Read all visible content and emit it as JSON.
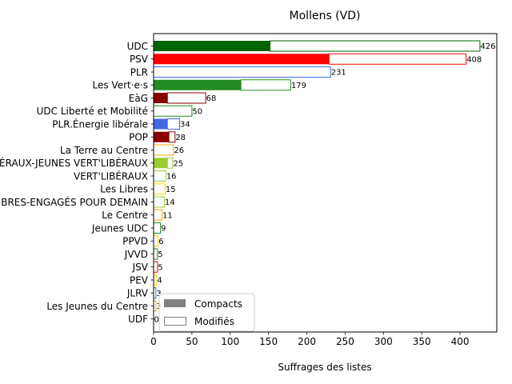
{
  "chart_data": {
    "type": "bar",
    "orientation": "horizontal",
    "title": "Mollens (VD)",
    "xlabel": "Suffrages des listes",
    "ylabel": "",
    "xlim": [
      0,
      448
    ],
    "xticks": [
      0,
      50,
      100,
      150,
      200,
      250,
      300,
      350,
      400
    ],
    "grid": false,
    "legend": {
      "placement": "lower-left",
      "entries": [
        {
          "label": "Compacts",
          "style": "filled",
          "color": "#808080"
        },
        {
          "label": "Modifiés",
          "style": "outline",
          "color": "#808080"
        }
      ]
    },
    "categories": [
      "UDC",
      "PSV",
      "PLR",
      "Les Vert·e·s",
      "EàG",
      "UDC Liberté et Mobilité",
      "PLR.Énergie libérale",
      "POP",
      "La Terre au Centre",
      "VERT'LIBÉRAUX-JEUNES VERT'LIBÉRAUX",
      "VERT'LIBÉRAUX",
      "Les Libres",
      "LIBRES-ENGAGÉS POUR DEMAIN",
      "Le Centre",
      "Jeunes UDC",
      "PPVD",
      "JVVD",
      "JSV",
      "PEV",
      "JLRV",
      "Les Jeunes du Centre",
      "UDF"
    ],
    "series": [
      {
        "name": "Compacts",
        "values": [
          152,
          229,
          0,
          114,
          18,
          0,
          18,
          20,
          0,
          18,
          0,
          0,
          0,
          0,
          0,
          0,
          0,
          0,
          0,
          0,
          0,
          0
        ]
      },
      {
        "name": "Modifiés",
        "values": [
          274,
          179,
          231,
          65,
          50,
          50,
          16,
          8,
          26,
          7,
          16,
          15,
          14,
          11,
          9,
          6,
          5,
          5,
          4,
          3,
          3,
          0
        ]
      }
    ],
    "totals": [
      426,
      408,
      231,
      179,
      68,
      50,
      34,
      28,
      26,
      25,
      16,
      15,
      14,
      11,
      9,
      6,
      5,
      5,
      4,
      3,
      3,
      0
    ],
    "colors": [
      "#006400",
      "#ff0000",
      "#4169e1",
      "#228b22",
      "#8b0000",
      "#228b22",
      "#4169e1",
      "#8b0000",
      "#ffa500",
      "#9acd32",
      "#9acd32",
      "#ffd700",
      "#9acd32",
      "#ffa500",
      "#228b22",
      "#ffd700",
      "#228b22",
      "#ff0000",
      "#ffd700",
      "#4169e1",
      "#ffa500",
      "#4169e1"
    ]
  }
}
